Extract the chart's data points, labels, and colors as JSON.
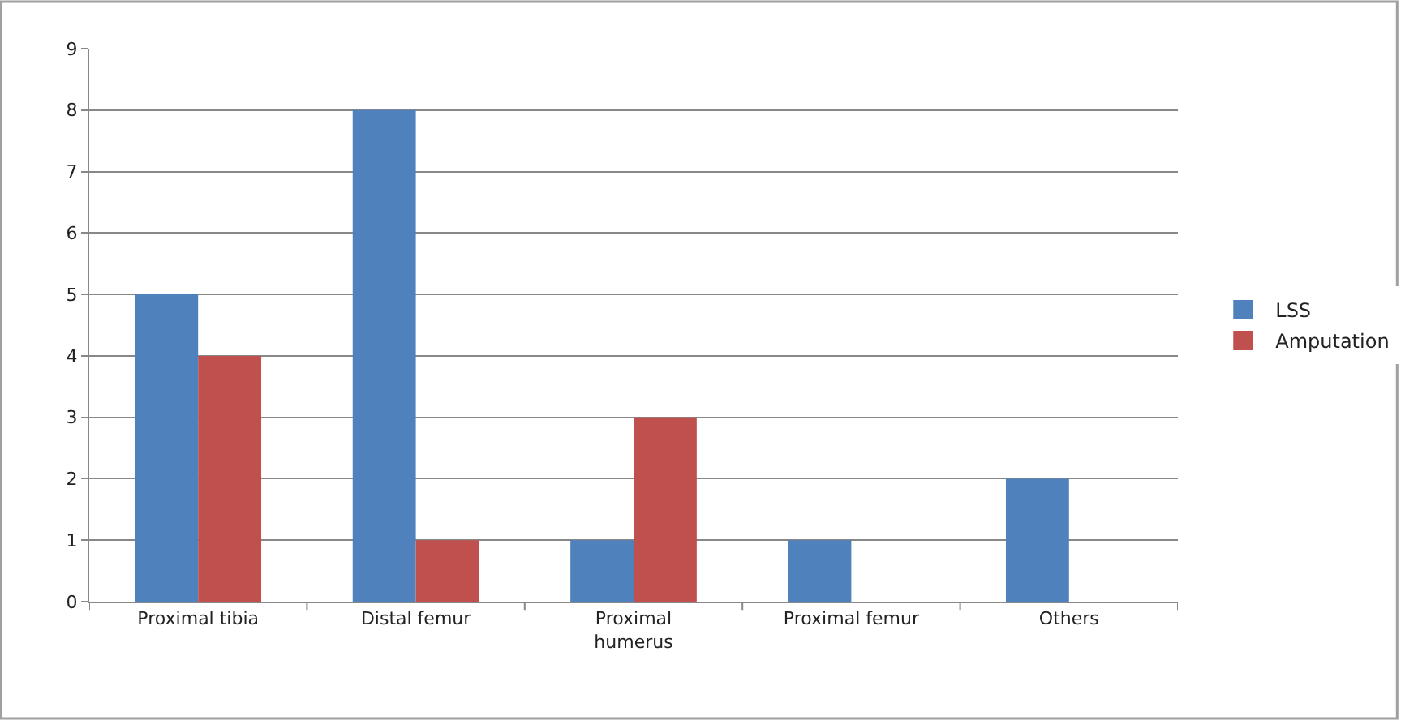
{
  "chart_data": {
    "type": "bar",
    "categories": [
      "Proximal tibia",
      "Distal femur",
      "Proximal humerus",
      "Proximal femur",
      "Others"
    ],
    "series": [
      {
        "name": "LSS",
        "color": "#4f81bd",
        "values": [
          5,
          8,
          1,
          1,
          2
        ]
      },
      {
        "name": "Amputation",
        "color": "#c0504d",
        "values": [
          4,
          1,
          3,
          0,
          0
        ]
      }
    ],
    "ylim": [
      0,
      9
    ],
    "yticks": [
      0,
      1,
      2,
      3,
      4,
      5,
      6,
      7,
      8,
      9
    ],
    "grid": "y",
    "legend": "right"
  }
}
